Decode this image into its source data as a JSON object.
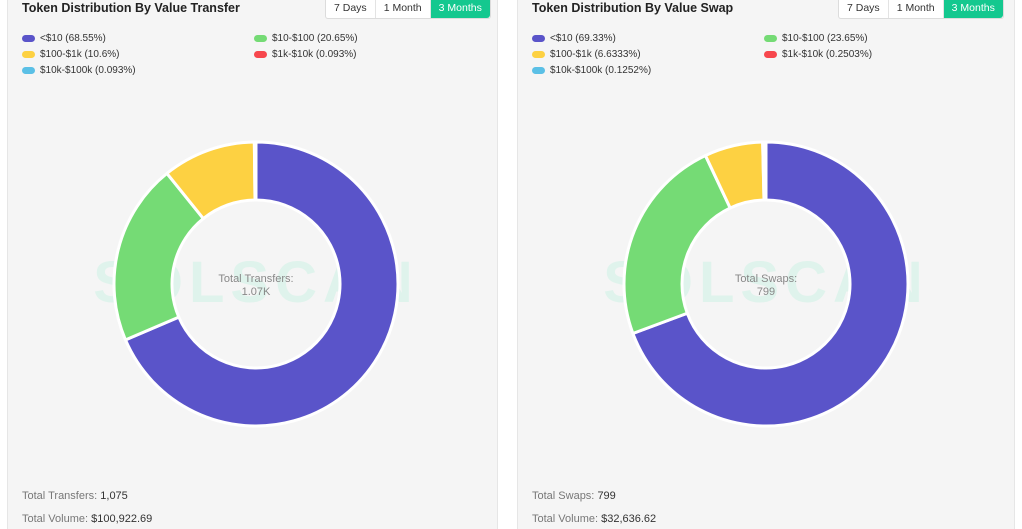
{
  "watermark": "SOLSCAN",
  "time_ranges": [
    "7 Days",
    "1 Month",
    "3 Months"
  ],
  "active_range": "3 Months",
  "panels": [
    {
      "title": "Token Distribution By Value Transfer",
      "center_label": "Total Transfers:",
      "center_value": "1.07K",
      "footer": [
        {
          "label": "Total Transfers:",
          "value": "1,075"
        },
        {
          "label": "Total Volume:",
          "value": "$100,922.69"
        }
      ]
    },
    {
      "title": "Token Distribution By Value Swap",
      "center_label": "Total Swaps:",
      "center_value": "799",
      "footer": [
        {
          "label": "Total Swaps:",
          "value": "799"
        },
        {
          "label": "Total Volume:",
          "value": "$32,636.62"
        }
      ]
    }
  ],
  "chart_data": [
    {
      "type": "pie",
      "variant": "donut",
      "title": "Token Distribution By Value Transfer",
      "categories": [
        "<$10",
        "$10-$100",
        "$100-$1k",
        "$1k-$10k",
        "$10k-$100k"
      ],
      "values": [
        68.55,
        20.65,
        10.6,
        0.093,
        0.093
      ],
      "legend_labels": [
        "<$10 (68.55%)",
        "$10-$100 (20.65%)",
        "$100-$1k (10.6%)",
        "$1k-$10k (0.093%)",
        "$10k-$100k (0.093%)"
      ],
      "colors": [
        "#5a54c9",
        "#75db75",
        "#fdd142",
        "#f7474d",
        "#5bc0e6"
      ],
      "legend_position": "top"
    },
    {
      "type": "pie",
      "variant": "donut",
      "title": "Token Distribution By Value Swap",
      "categories": [
        "<$10",
        "$10-$100",
        "$100-$1k",
        "$1k-$10k",
        "$10k-$100k"
      ],
      "values": [
        69.33,
        23.65,
        6.6333,
        0.2503,
        0.1252
      ],
      "legend_labels": [
        "<$10 (69.33%)",
        "$10-$100 (23.65%)",
        "$100-$1k (6.6333%)",
        "$1k-$10k (0.2503%)",
        "$10k-$100k (0.1252%)"
      ],
      "colors": [
        "#5a54c9",
        "#75db75",
        "#fdd142",
        "#f7474d",
        "#5bc0e6"
      ],
      "legend_position": "top"
    }
  ]
}
